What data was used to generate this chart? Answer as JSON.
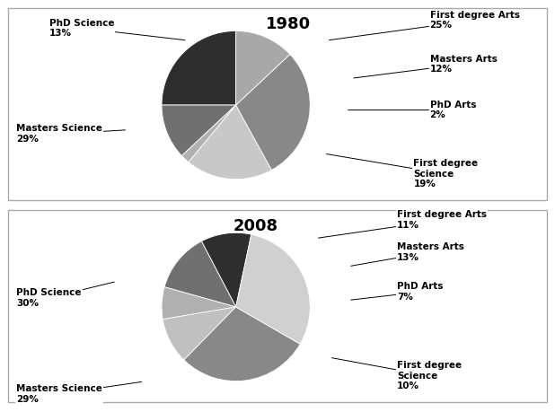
{
  "chart1": {
    "title": "1980",
    "values": [
      25,
      12,
      2,
      19,
      29,
      13
    ],
    "colors": [
      "#2e2e2e",
      "#707070",
      "#b0b0b0",
      "#c8c8c8",
      "#888888",
      "#a8a8a8"
    ],
    "startangle": 90
  },
  "chart2": {
    "title": "2008",
    "values": [
      11,
      13,
      7,
      10,
      29,
      30
    ],
    "colors": [
      "#2e2e2e",
      "#707070",
      "#b0b0b0",
      "#c0c0c0",
      "#888888",
      "#d0d0d0"
    ],
    "startangle": 78
  },
  "background_color": "#ffffff",
  "border_color": "#aaaaaa",
  "title_fontsize": 13,
  "label_fontsize": 7.5,
  "annotation_color": "#000000"
}
